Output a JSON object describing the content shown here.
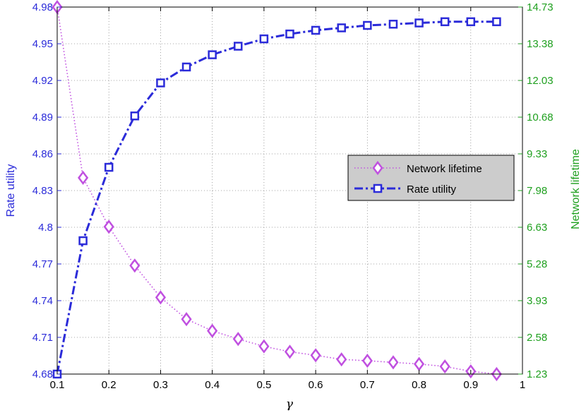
{
  "chart_data": {
    "type": "line",
    "xlabel": "γ",
    "ylabel_left": "Rate utility",
    "ylabel_right": "Network lifetime",
    "xlim": [
      0.1,
      1.0
    ],
    "ylim_left": [
      4.68,
      4.98
    ],
    "ylim_right": [
      1.23,
      14.73
    ],
    "x_ticks": [
      "0.1",
      "0.2",
      "0.3",
      "0.4",
      "0.5",
      "0.6",
      "0.7",
      "0.8",
      "0.9",
      "1"
    ],
    "y_left_ticks": [
      "4.68",
      "4.71",
      "4.74",
      "4.77",
      "4.8",
      "4.83",
      "4.86",
      "4.89",
      "4.92",
      "4.95",
      "4.98"
    ],
    "y_right_ticks": [
      "1.23",
      "2.58",
      "3.93",
      "5.28",
      "6.63",
      "7.98",
      "9.33",
      "10.68",
      "12.03",
      "13.38",
      "14.73"
    ],
    "grid": true,
    "legend_position": "center-right",
    "colors": {
      "left_axis": "#2b2bd9",
      "right_axis": "#1fa01f",
      "lifetime": "#c050e0",
      "rate": "#2b2bd9"
    },
    "x": [
      0.1,
      0.15,
      0.2,
      0.25,
      0.3,
      0.35,
      0.4,
      0.45,
      0.5,
      0.55,
      0.6,
      0.65,
      0.7,
      0.75,
      0.8,
      0.85,
      0.9,
      0.95
    ],
    "series": [
      {
        "name": "Network lifetime",
        "axis": "right",
        "marker": "diamond",
        "style": "dotted",
        "values": [
          14.73,
          8.45,
          6.65,
          5.22,
          4.05,
          3.25,
          2.82,
          2.52,
          2.25,
          2.05,
          1.92,
          1.77,
          1.72,
          1.66,
          1.6,
          1.51,
          1.33,
          1.23
        ]
      },
      {
        "name": "Rate utility",
        "axis": "left",
        "marker": "square",
        "style": "dashdot",
        "values": [
          4.68,
          4.789,
          4.849,
          4.891,
          4.918,
          4.931,
          4.941,
          4.948,
          4.954,
          4.958,
          4.961,
          4.963,
          4.965,
          4.966,
          4.967,
          4.968,
          4.968,
          4.968
        ]
      }
    ]
  }
}
